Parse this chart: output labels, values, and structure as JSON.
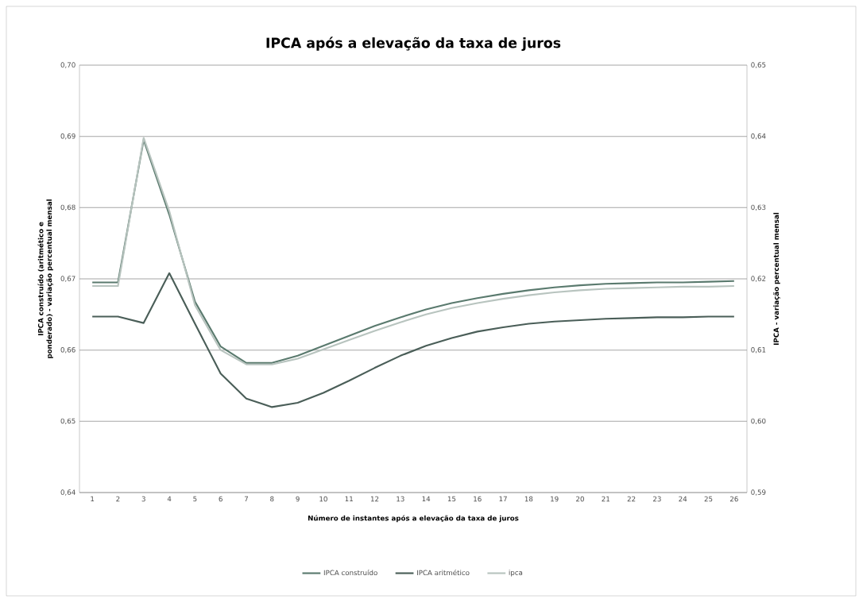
{
  "chart_data": {
    "type": "line",
    "title": "IPCA após a elevação da taxa de juros",
    "xlabel": "Número de instantes após a elevação da taxa de juros",
    "ylabel": "IPCA construído (aritmético e ponderado) - variação percentual mensal",
    "y2label": "IPCA - variação percentual mensal",
    "categories": [
      "1",
      "2",
      "3",
      "4",
      "5",
      "6",
      "7",
      "8",
      "9",
      "10",
      "11",
      "12",
      "13",
      "14",
      "15",
      "16",
      "17",
      "18",
      "19",
      "20",
      "21",
      "22",
      "23",
      "24",
      "25",
      "26"
    ],
    "series": [
      {
        "name": "IPCA construído",
        "color": "#5a7a6e",
        "values": [
          0.6695,
          0.6695,
          0.6895,
          0.679,
          0.6668,
          0.6605,
          0.6582,
          0.6582,
          0.6592,
          0.6606,
          0.662,
          0.6634,
          0.6646,
          0.6657,
          0.6666,
          0.6673,
          0.6679,
          0.6684,
          0.6688,
          0.6691,
          0.6693,
          0.6694,
          0.6695,
          0.6695,
          0.6696,
          0.6697
        ]
      },
      {
        "name": "IPCA aritmético",
        "color": "#4a5e58",
        "values": [
          0.6647,
          0.6647,
          0.6638,
          0.6708,
          0.6637,
          0.6567,
          0.6532,
          0.652,
          0.6526,
          0.654,
          0.6557,
          0.6575,
          0.6592,
          0.6606,
          0.6617,
          0.6626,
          0.6632,
          0.6637,
          0.664,
          0.6642,
          0.6644,
          0.6645,
          0.6646,
          0.6646,
          0.6647,
          0.6647
        ]
      },
      {
        "name": "ipca",
        "color": "#b8c4bf",
        "axis": "y2",
        "values": [
          0.619,
          0.619,
          0.6398,
          0.6295,
          0.6163,
          0.61,
          0.608,
          0.608,
          0.6088,
          0.6101,
          0.6114,
          0.6127,
          0.6139,
          0.615,
          0.6159,
          0.6166,
          0.6172,
          0.6177,
          0.6181,
          0.6184,
          0.6186,
          0.6187,
          0.6188,
          0.6189,
          0.6189,
          0.619
        ]
      }
    ],
    "ylim": [
      0.64,
      0.7
    ],
    "yticks": [
      {
        "value": 0.64,
        "label": "0,64"
      },
      {
        "value": 0.65,
        "label": "0,65"
      },
      {
        "value": 0.66,
        "label": "0,66"
      },
      {
        "value": 0.67,
        "label": "0,67"
      },
      {
        "value": 0.68,
        "label": "0,68"
      },
      {
        "value": 0.69,
        "label": "0,69"
      },
      {
        "value": 0.7,
        "label": "0,70"
      }
    ],
    "y2lim": [
      0.59,
      0.65
    ],
    "y2ticks": [
      {
        "value": 0.59,
        "label": "0,59"
      },
      {
        "value": 0.6,
        "label": "0,60"
      },
      {
        "value": 0.61,
        "label": "0,61"
      },
      {
        "value": 0.62,
        "label": "0,62"
      },
      {
        "value": 0.63,
        "label": "0,63"
      },
      {
        "value": 0.64,
        "label": "0,64"
      },
      {
        "value": 0.65,
        "label": "0,65"
      }
    ],
    "grid": "y",
    "legend": "bottom",
    "marker": "none",
    "line_style": "solid"
  }
}
